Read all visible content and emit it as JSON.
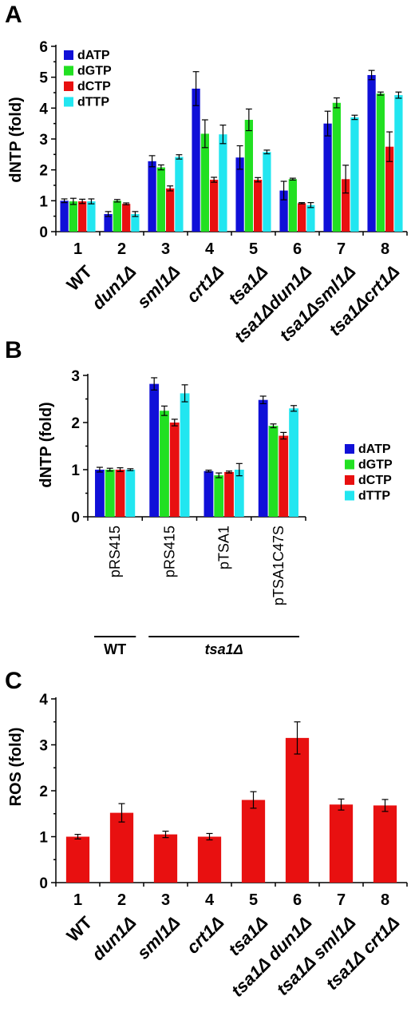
{
  "colors": {
    "dATP": "#1010d8",
    "dGTP": "#22e022",
    "dCTP": "#e81010",
    "dTTP": "#22e6f0"
  },
  "panels": {
    "A": {
      "letter": "A"
    },
    "B": {
      "letter": "B"
    },
    "C": {
      "letter": "C"
    }
  },
  "chart_data": [
    {
      "panel": "A",
      "type": "bar",
      "ylabel": "dNTP (fold)",
      "ylim": [
        0,
        6
      ],
      "yticks": [
        0,
        1,
        2,
        3,
        4,
        5,
        6
      ],
      "numbers": [
        "1",
        "2",
        "3",
        "4",
        "5",
        "6",
        "7",
        "8"
      ],
      "categories": [
        "WT",
        "dun1Δ",
        "sml1Δ",
        "crt1Δ",
        "tsa1Δ",
        "tsa1Δdun1Δ",
        "tsa1Δsml1Δ",
        "tsa1Δcrt1Δ"
      ],
      "legend": "top-left",
      "series": [
        {
          "name": "dATP",
          "values": [
            1.0,
            0.57,
            2.28,
            4.63,
            2.4,
            1.33,
            3.5,
            5.07
          ],
          "errors": [
            0.06,
            0.08,
            0.18,
            0.55,
            0.38,
            0.3,
            0.4,
            0.15
          ]
        },
        {
          "name": "dGTP",
          "values": [
            0.98,
            1.0,
            2.08,
            3.17,
            3.62,
            1.7,
            4.17,
            4.47
          ],
          "errors": [
            0.1,
            0.04,
            0.08,
            0.45,
            0.35,
            0.03,
            0.16,
            0.05
          ]
        },
        {
          "name": "dCTP",
          "values": [
            0.98,
            0.9,
            1.4,
            1.68,
            1.68,
            0.92,
            1.7,
            2.75
          ],
          "errors": [
            0.07,
            0.03,
            0.08,
            0.08,
            0.07,
            0.02,
            0.45,
            0.48
          ]
        },
        {
          "name": "dTTP",
          "values": [
            0.98,
            0.57,
            2.42,
            3.15,
            2.58,
            0.86,
            3.7,
            4.42
          ],
          "errors": [
            0.08,
            0.08,
            0.07,
            0.3,
            0.06,
            0.08,
            0.07,
            0.1
          ]
        }
      ]
    },
    {
      "panel": "B",
      "type": "bar",
      "ylabel": "dNTP (fold)",
      "ylim": [
        0,
        3
      ],
      "yticks": [
        0,
        1,
        2,
        3
      ],
      "categories": [
        "pRS415",
        "pRS415",
        "pTSA1",
        "pTSA1C47S"
      ],
      "groups": [
        {
          "label": "WT",
          "italic": false,
          "span": [
            0,
            0
          ]
        },
        {
          "label": "tsa1Δ",
          "italic": true,
          "span": [
            1,
            3
          ]
        }
      ],
      "legend": "right",
      "series": [
        {
          "name": "dATP",
          "values": [
            1.0,
            2.82,
            0.97,
            2.48
          ],
          "errors": [
            0.05,
            0.13,
            0.02,
            0.08
          ]
        },
        {
          "name": "dGTP",
          "values": [
            1.0,
            2.25,
            0.88,
            1.93
          ],
          "errors": [
            0.03,
            0.1,
            0.05,
            0.04
          ]
        },
        {
          "name": "dCTP",
          "values": [
            1.0,
            2.0,
            0.95,
            1.72
          ],
          "errors": [
            0.04,
            0.07,
            0.02,
            0.07
          ]
        },
        {
          "name": "dTTP",
          "values": [
            1.0,
            2.62,
            1.0,
            2.3
          ],
          "errors": [
            0.02,
            0.18,
            0.13,
            0.06
          ]
        }
      ]
    },
    {
      "panel": "C",
      "type": "bar",
      "ylabel": "ROS (fold)",
      "ylim": [
        0,
        4
      ],
      "yticks": [
        0,
        1,
        2,
        3,
        4
      ],
      "numbers": [
        "1",
        "2",
        "3",
        "4",
        "5",
        "6",
        "7",
        "8"
      ],
      "categories": [
        "WT",
        "dun1Δ",
        "sml1Δ",
        "crt1Δ",
        "tsa1Δ",
        "tsa1Δ dun1Δ",
        "tsa1Δ sml1Δ",
        "tsa1Δ crt1Δ"
      ],
      "series": [
        {
          "name": "ROS",
          "values": [
            1.0,
            1.52,
            1.05,
            1.0,
            1.8,
            3.15,
            1.7,
            1.68
          ],
          "errors": [
            0.05,
            0.2,
            0.07,
            0.07,
            0.18,
            0.35,
            0.12,
            0.13
          ]
        }
      ]
    }
  ]
}
